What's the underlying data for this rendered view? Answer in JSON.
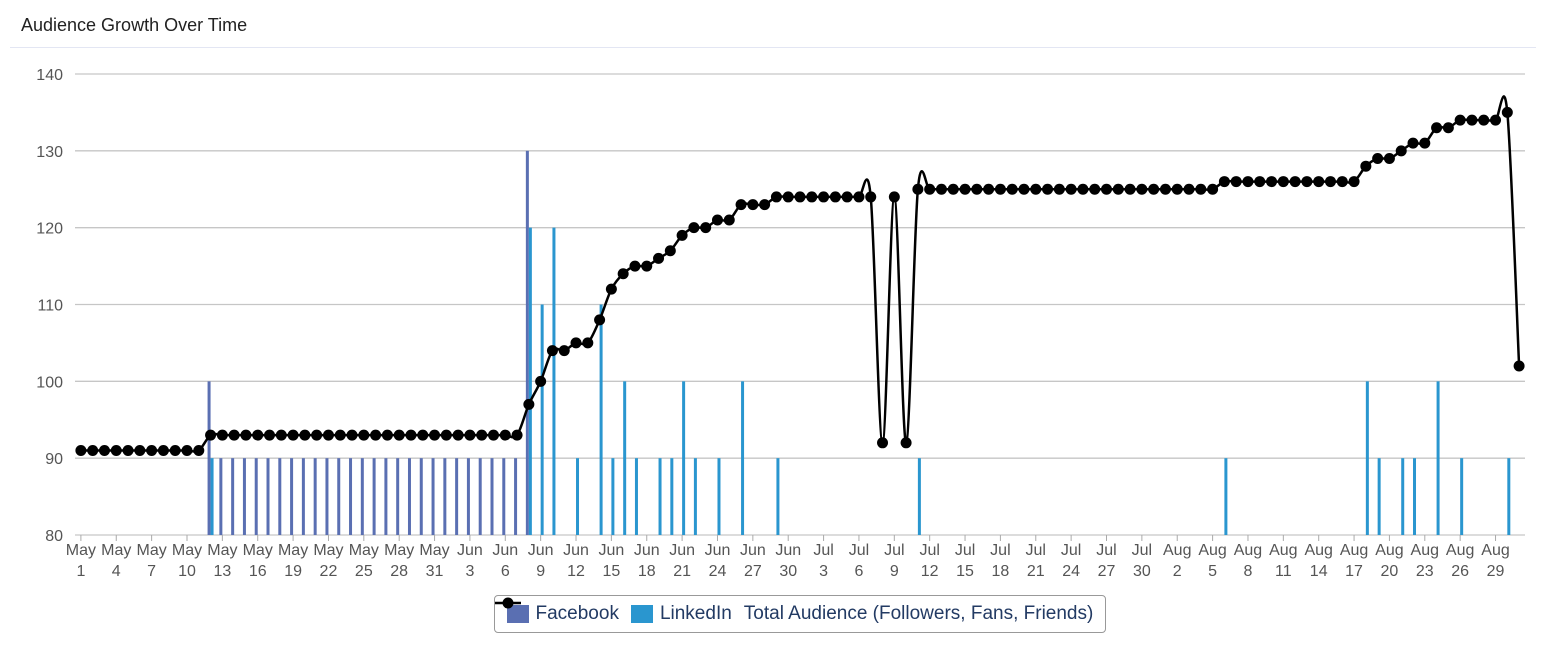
{
  "chart_data": {
    "type": "combo",
    "title": "Audience Growth Over Time",
    "categories": [
      "May 1",
      null,
      null,
      "May 4",
      null,
      null,
      "May 7",
      null,
      null,
      "May 10",
      null,
      null,
      "May 13",
      null,
      null,
      "May 16",
      null,
      null,
      "May 19",
      null,
      null,
      "May 22",
      null,
      null,
      "May 25",
      null,
      null,
      "May 28",
      null,
      null,
      "May 31",
      null,
      null,
      "Jun 3",
      null,
      null,
      "Jun 6",
      null,
      null,
      "Jun 9",
      null,
      null,
      "Jun 12",
      null,
      null,
      "Jun 15",
      null,
      null,
      "Jun 18",
      null,
      null,
      "Jun 21",
      null,
      null,
      "Jun 24",
      null,
      null,
      "Jun 27",
      null,
      null,
      "Jun 30",
      null,
      null,
      "Jul 3",
      null,
      null,
      "Jul 6",
      null,
      null,
      "Jul 9",
      null,
      null,
      "Jul 12",
      null,
      null,
      "Jul 15",
      null,
      null,
      "Jul 18",
      null,
      null,
      "Jul 21",
      null,
      null,
      "Jul 24",
      null,
      null,
      "Jul 27",
      null,
      null,
      "Jul 30",
      null,
      null,
      "Aug 2",
      null,
      null,
      "Aug 5",
      null,
      null,
      "Aug 8",
      null,
      null,
      "Aug 11",
      null,
      null,
      "Aug 14",
      null,
      null,
      "Aug 17",
      null,
      null,
      "Aug 20",
      null,
      null,
      "Aug 23",
      null,
      null,
      "Aug 26",
      null,
      null,
      "Aug 29",
      null,
      null
    ],
    "series": [
      {
        "name": "Facebook",
        "type": "bar",
        "color": "#5a6fb2",
        "values": [
          null,
          null,
          null,
          null,
          null,
          null,
          null,
          null,
          null,
          null,
          null,
          100,
          90,
          90,
          90,
          90,
          90,
          90,
          90,
          90,
          90,
          90,
          90,
          90,
          90,
          90,
          90,
          90,
          90,
          90,
          90,
          90,
          90,
          90,
          90,
          90,
          90,
          90,
          130,
          null,
          null,
          null,
          null,
          null,
          null,
          null,
          null,
          null,
          null,
          null,
          null,
          null,
          null,
          null,
          null,
          null,
          null,
          null,
          null,
          null,
          null,
          null,
          null,
          null,
          null,
          null,
          null,
          null,
          null,
          null,
          null,
          null,
          null,
          null,
          null,
          null,
          null,
          null,
          null,
          null,
          null,
          null,
          null,
          null,
          null,
          null,
          null,
          null,
          null,
          null,
          null,
          null,
          null,
          null,
          null,
          null,
          null,
          null,
          null,
          null,
          null,
          null,
          null,
          null,
          null,
          null,
          null,
          null,
          null,
          null,
          null,
          null,
          null,
          null,
          null,
          null,
          null,
          null,
          null,
          null,
          null,
          null,
          null
        ]
      },
      {
        "name": "LinkedIn",
        "type": "bar",
        "color": "#2a96cf",
        "values": [
          null,
          null,
          null,
          null,
          null,
          null,
          null,
          null,
          null,
          null,
          null,
          90,
          null,
          null,
          null,
          null,
          null,
          null,
          null,
          null,
          null,
          null,
          null,
          null,
          null,
          null,
          null,
          null,
          null,
          null,
          null,
          null,
          null,
          null,
          null,
          null,
          null,
          null,
          120,
          110,
          120,
          null,
          90,
          null,
          110,
          90,
          100,
          90,
          null,
          90,
          90,
          100,
          90,
          null,
          90,
          null,
          100,
          null,
          null,
          90,
          null,
          null,
          null,
          null,
          null,
          null,
          null,
          null,
          null,
          null,
          null,
          90,
          null,
          null,
          null,
          null,
          null,
          null,
          null,
          null,
          null,
          null,
          null,
          null,
          null,
          null,
          null,
          null,
          null,
          null,
          null,
          null,
          null,
          null,
          null,
          null,
          null,
          90,
          null,
          null,
          null,
          null,
          null,
          null,
          null,
          null,
          null,
          null,
          null,
          100,
          90,
          null,
          90,
          90,
          null,
          100,
          null,
          90,
          null,
          null,
          null,
          90,
          null
        ]
      },
      {
        "name": "Total Audience (Followers, Fans, Friends)",
        "type": "line",
        "color": "#000000",
        "values": [
          91,
          91,
          91,
          91,
          91,
          91,
          91,
          91,
          91,
          91,
          91,
          93,
          93,
          93,
          93,
          93,
          93,
          93,
          93,
          93,
          93,
          93,
          93,
          93,
          93,
          93,
          93,
          93,
          93,
          93,
          93,
          93,
          93,
          93,
          93,
          93,
          93,
          93,
          97,
          100,
          104,
          104,
          105,
          105,
          108,
          112,
          114,
          115,
          115,
          116,
          117,
          119,
          120,
          120,
          121,
          121,
          123,
          123,
          123,
          124,
          124,
          124,
          124,
          124,
          124,
          124,
          124,
          124,
          92,
          124,
          92,
          125,
          125,
          125,
          125,
          125,
          125,
          125,
          125,
          125,
          125,
          125,
          125,
          125,
          125,
          125,
          125,
          125,
          125,
          125,
          125,
          125,
          125,
          125,
          125,
          125,
          125,
          126,
          126,
          126,
          126,
          126,
          126,
          126,
          126,
          126,
          126,
          126,
          126,
          128,
          129,
          129,
          130,
          131,
          131,
          133,
          133,
          134,
          134,
          134,
          134,
          135,
          102
        ]
      }
    ],
    "ylim": [
      80,
      140
    ],
    "yticks": [
      80,
      90,
      100,
      110,
      120,
      130,
      140
    ],
    "grid": true,
    "legend": "bottom"
  }
}
